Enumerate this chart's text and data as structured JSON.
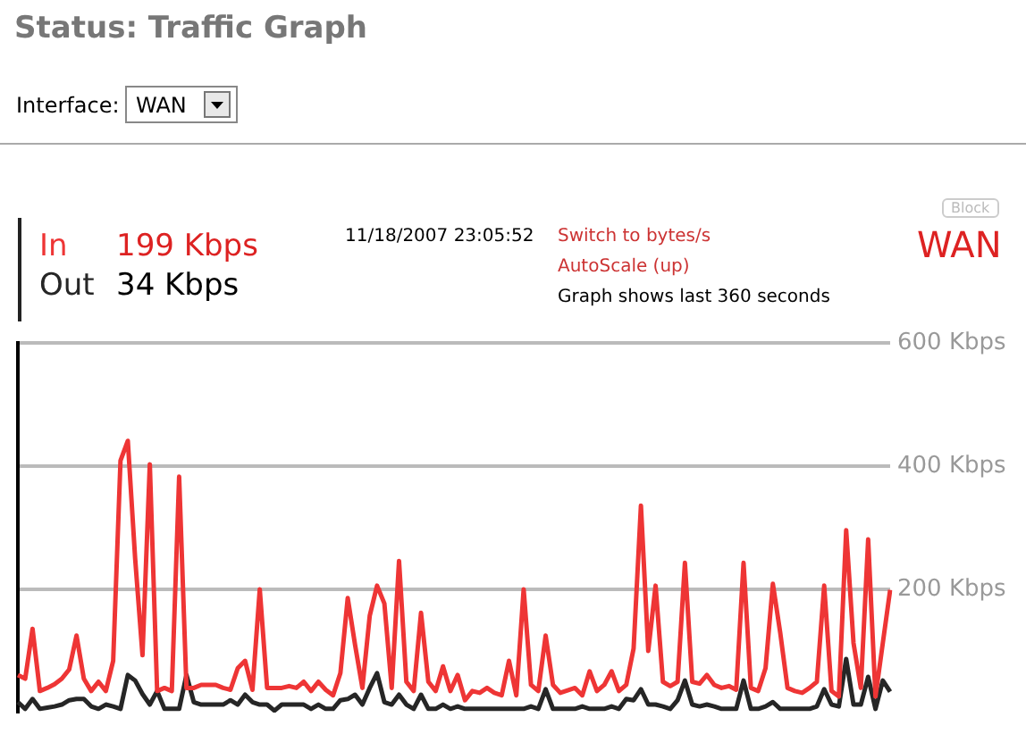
{
  "chart_data": {
    "type": "line",
    "title": "Status: Traffic Graph",
    "categories": [
      null,
      null,
      null,
      null,
      null,
      null,
      null,
      null,
      null,
      null,
      null,
      null,
      null,
      null,
      null,
      null,
      null,
      null,
      null,
      null,
      null,
      null,
      null,
      null,
      null,
      null,
      null,
      null,
      null,
      null,
      null,
      null,
      null,
      null,
      null,
      null,
      null,
      null,
      null,
      null,
      null,
      null,
      null,
      null,
      null,
      null,
      null,
      null,
      null,
      null,
      null,
      null,
      null,
      null,
      null,
      null,
      null,
      null,
      null,
      null,
      null,
      null,
      null,
      null,
      null,
      null,
      null,
      null,
      null,
      null,
      null,
      null,
      null,
      null,
      null,
      null,
      null,
      null,
      null,
      null,
      null,
      null,
      null,
      null,
      null,
      null,
      null,
      null,
      null,
      null,
      null,
      null,
      null,
      null,
      null,
      null,
      null,
      null,
      null,
      null,
      null,
      null,
      null,
      null,
      null,
      null,
      null,
      null,
      null,
      null,
      null,
      null,
      null,
      null,
      null,
      null,
      null,
      null,
      null,
      null
    ],
    "series": [
      {
        "name": "In",
        "color": "#ee3535",
        "values": [
          61,
          55,
          136,
          35,
          40,
          46,
          55,
          70,
          125,
          55,
          35,
          50,
          35,
          84,
          409,
          441,
          250,
          93,
          403,
          35,
          40,
          35,
          383,
          40,
          40,
          45,
          45,
          45,
          40,
          37,
          72,
          84,
          37,
          200,
          40,
          40,
          40,
          43,
          40,
          50,
          35,
          50,
          37,
          28,
          64,
          186,
          110,
          40,
          157,
          206,
          177,
          40,
          246,
          50,
          35,
          162,
          50,
          35,
          75,
          35,
          61,
          20,
          35,
          32,
          40,
          32,
          28,
          84,
          28,
          200,
          45,
          35,
          125,
          45,
          32,
          36,
          40,
          28,
          67,
          35,
          45,
          67,
          35,
          45,
          104,
          336,
          100,
          206,
          50,
          43,
          50,
          243,
          50,
          47,
          61,
          45,
          40,
          43,
          37,
          243,
          40,
          35,
          72,
          209,
          130,
          40,
          35,
          32,
          40,
          50,
          206,
          35,
          26,
          296,
          113,
          40,
          281,
          26,
          113,
          199
        ]
      },
      {
        "name": "Out",
        "color": "#262626",
        "values": [
          17,
          6,
          22,
          6,
          8,
          10,
          13,
          20,
          22,
          22,
          10,
          6,
          13,
          10,
          6,
          61,
          52,
          30,
          13,
          35,
          6,
          6,
          6,
          61,
          17,
          13,
          13,
          13,
          13,
          20,
          13,
          29,
          17,
          13,
          13,
          3,
          13,
          13,
          13,
          13,
          6,
          13,
          6,
          6,
          20,
          22,
          29,
          13,
          40,
          64,
          17,
          13,
          29,
          13,
          6,
          29,
          6,
          6,
          13,
          6,
          10,
          6,
          6,
          6,
          6,
          6,
          6,
          6,
          6,
          6,
          10,
          6,
          38,
          6,
          6,
          6,
          6,
          10,
          6,
          6,
          6,
          10,
          6,
          22,
          20,
          38,
          13,
          13,
          10,
          6,
          20,
          52,
          13,
          10,
          13,
          10,
          6,
          6,
          6,
          52,
          6,
          6,
          10,
          17,
          6,
          6,
          6,
          6,
          6,
          10,
          38,
          13,
          10,
          87,
          13,
          13,
          58,
          6,
          52,
          34
        ]
      }
    ],
    "ylim": [
      0,
      600
    ],
    "yticks": [
      {
        "value": 200,
        "label": "200 Kbps"
      },
      {
        "value": 400,
        "label": "400 Kbps"
      },
      {
        "value": 600,
        "label": "600 Kbps"
      }
    ],
    "grid": "y",
    "legend": "top left",
    "tick_labels": "y",
    "marker": "none",
    "line_style": "solid",
    "annotations": [
      "Interface:",
      "WAN",
      "199 Kbps",
      "34 Kbps",
      "11/18/2007 23:05:52",
      "Switch to bytes/s",
      "AutoScale (up)",
      "Graph shows last 360 seconds",
      "Block",
      "WAN"
    ]
  }
}
